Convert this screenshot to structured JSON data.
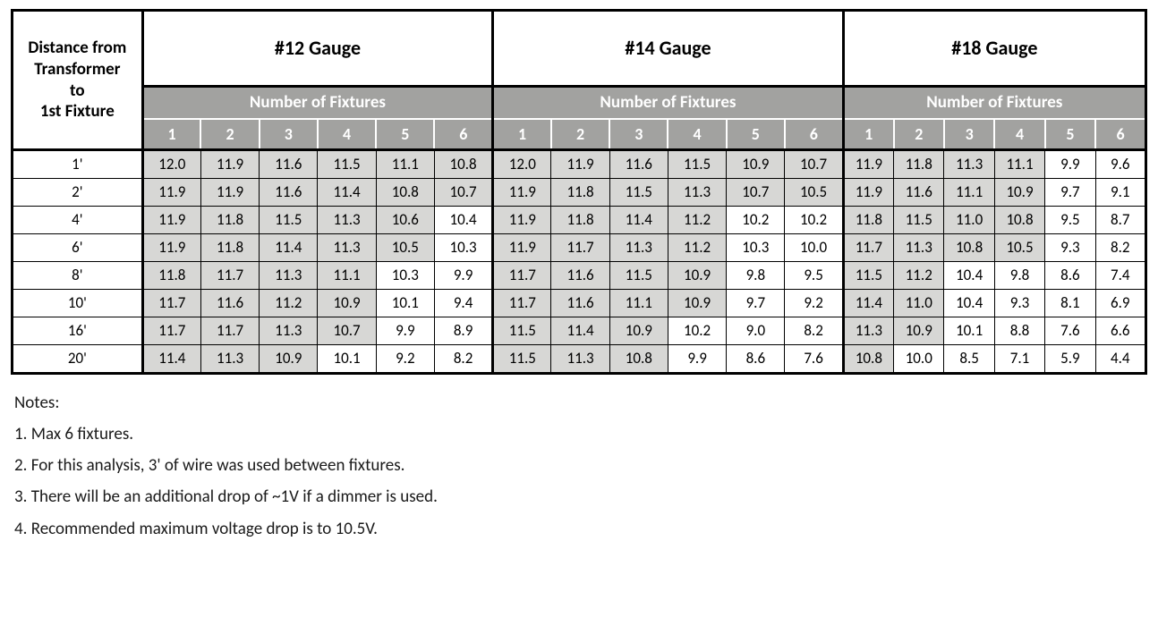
{
  "table": {
    "rowHeaderLines": [
      "Distance from",
      "Transformer",
      "to",
      "1st Fixture"
    ],
    "gauges": [
      "#12 Gauge",
      "#14 Gauge",
      "#18 Gauge"
    ],
    "subHeader": "Number of Fixtures",
    "fixtureColumns": [
      "1",
      "2",
      "3",
      "4",
      "5",
      "6"
    ],
    "distances": [
      "1'",
      "2'",
      "4'",
      "6'",
      "8'",
      "10'",
      "16'",
      "20'"
    ],
    "threshold": 10.5,
    "cellBackground": "#d7d7d5",
    "headerBarBackground": "#a2a2a0",
    "headerBarText": "#ffffff",
    "data": {
      "#12 Gauge": [
        [
          12.0,
          11.9,
          11.6,
          11.5,
          11.1,
          10.8
        ],
        [
          11.9,
          11.9,
          11.6,
          11.4,
          10.8,
          10.7
        ],
        [
          11.9,
          11.8,
          11.5,
          11.3,
          10.6,
          10.4
        ],
        [
          11.9,
          11.8,
          11.4,
          11.3,
          10.5,
          10.3
        ],
        [
          11.8,
          11.7,
          11.3,
          11.1,
          10.3,
          9.9
        ],
        [
          11.7,
          11.6,
          11.2,
          10.9,
          10.1,
          9.4
        ],
        [
          11.7,
          11.7,
          11.3,
          10.7,
          9.9,
          8.9
        ],
        [
          11.4,
          11.3,
          10.9,
          10.1,
          9.2,
          8.2
        ]
      ],
      "#14 Gauge": [
        [
          12.0,
          11.9,
          11.6,
          11.5,
          10.9,
          10.7
        ],
        [
          11.9,
          11.8,
          11.5,
          11.3,
          10.7,
          10.5
        ],
        [
          11.9,
          11.8,
          11.4,
          11.2,
          10.2,
          10.2
        ],
        [
          11.9,
          11.7,
          11.3,
          11.2,
          10.3,
          10.0
        ],
        [
          11.7,
          11.6,
          11.5,
          10.9,
          9.8,
          9.5
        ],
        [
          11.7,
          11.6,
          11.1,
          10.9,
          9.7,
          9.2
        ],
        [
          11.5,
          11.4,
          10.9,
          10.2,
          9.0,
          8.2
        ],
        [
          11.5,
          11.3,
          10.8,
          9.9,
          8.6,
          7.6
        ]
      ],
      "#18 Gauge": [
        [
          11.9,
          11.8,
          11.3,
          11.1,
          9.9,
          9.6
        ],
        [
          11.9,
          11.6,
          11.1,
          10.9,
          9.7,
          9.1
        ],
        [
          11.8,
          11.5,
          11.0,
          10.8,
          9.5,
          8.7
        ],
        [
          11.7,
          11.3,
          10.8,
          10.5,
          9.3,
          8.2
        ],
        [
          11.5,
          11.2,
          10.4,
          9.8,
          8.6,
          7.4
        ],
        [
          11.4,
          11.0,
          10.4,
          9.3,
          8.1,
          6.9
        ],
        [
          11.3,
          10.9,
          10.1,
          8.8,
          7.6,
          6.6
        ],
        [
          10.8,
          10.0,
          8.5,
          7.1,
          5.9,
          4.4
        ]
      ]
    }
  },
  "notes": {
    "heading": "Notes:",
    "items": [
      "1. Max 6 fixtures.",
      "2. For this analysis, 3' of wire was used between fixtures.",
      "3. There will be an additional drop of ~1V if a dimmer is used.",
      "4. Recommended maximum voltage drop is to 10.5V."
    ]
  }
}
